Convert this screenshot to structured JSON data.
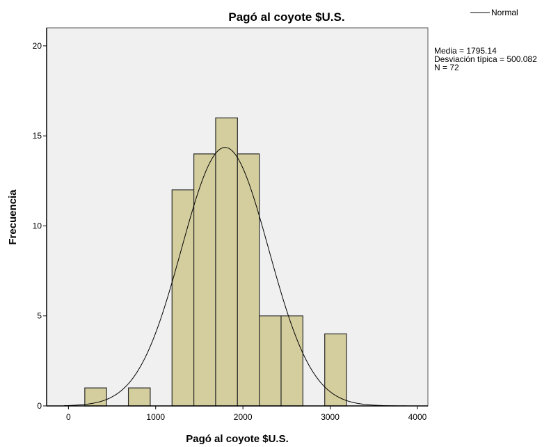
{
  "chart_data": {
    "type": "bar",
    "title": "Pagó al coyote $U.S.",
    "xlabel": "Pagó al coyote $U.S.",
    "ylabel": "Frecuencia",
    "xlim": [
      -250,
      4120
    ],
    "ylim": [
      0,
      21
    ],
    "xticks": [
      0,
      1000,
      2000,
      3000,
      4000
    ],
    "yticks": [
      0,
      5,
      10,
      15,
      20
    ],
    "bins": [
      {
        "from": 187.5,
        "to": 437.5,
        "count": 1
      },
      {
        "from": 687.5,
        "to": 937.5,
        "count": 1
      },
      {
        "from": 1187.5,
        "to": 1437.5,
        "count": 12
      },
      {
        "from": 1437.5,
        "to": 1687.5,
        "count": 14
      },
      {
        "from": 1687.5,
        "to": 1937.5,
        "count": 16
      },
      {
        "from": 1937.5,
        "to": 2187.5,
        "count": 14
      },
      {
        "from": 2187.5,
        "to": 2437.5,
        "count": 5
      },
      {
        "from": 2437.5,
        "to": 2687.5,
        "count": 5
      },
      {
        "from": 2937.5,
        "to": 3187.5,
        "count": 4
      }
    ],
    "normal_curve": {
      "mean": 1795.14,
      "sd": 500.082,
      "n": 72,
      "bin_width": 250
    },
    "legend": {
      "entries": [
        "Normal"
      ],
      "position": "top-right"
    },
    "stats_text": [
      "Media = 1795.14",
      "Desviación típica = 500.082",
      "N = 72"
    ],
    "colors": {
      "bar_fill": "#d4ce9e",
      "bar_stroke": "#2a2a2a",
      "plot_bg": "#f0f0f0",
      "curve": "#000000"
    },
    "grid": false
  }
}
